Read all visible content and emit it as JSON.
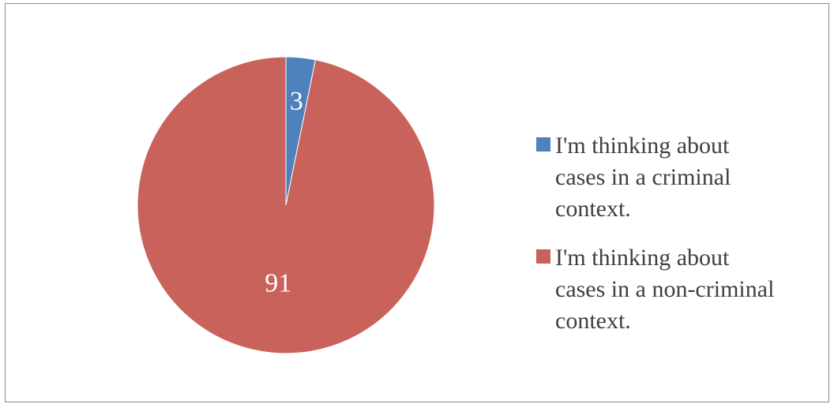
{
  "chart_data": {
    "type": "pie",
    "title": "",
    "legend_position": "right",
    "slices": [
      {
        "label": "I'm thinking about cases in a criminal context.",
        "value": 3,
        "color": "#4f81bd"
      },
      {
        "label": "I'm thinking about cases in a non-criminal context.",
        "value": 91,
        "color": "#c9625b"
      }
    ]
  }
}
